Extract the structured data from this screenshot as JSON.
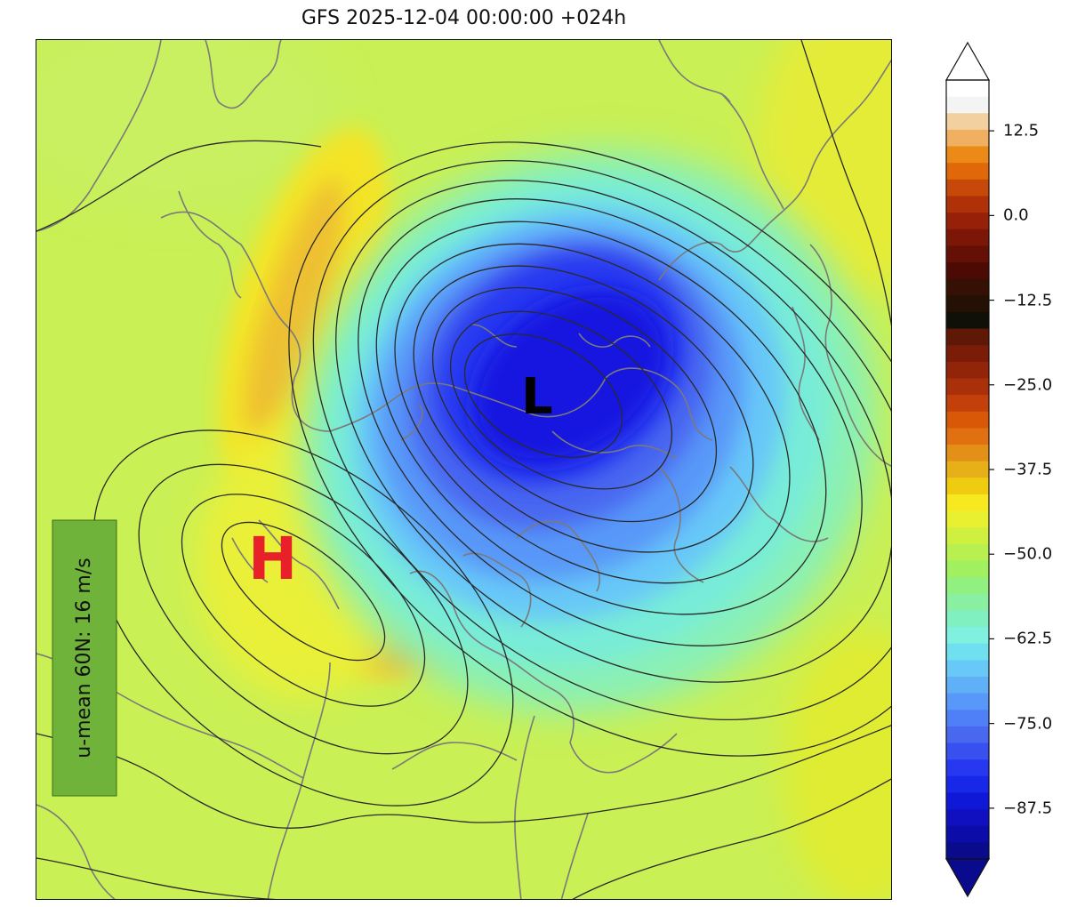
{
  "title": "GFS 2025-12-04 00:00:00 +024h",
  "map": {
    "low_marker": "L",
    "high_marker": "H",
    "colors": {
      "low_marker": "#000000",
      "high_marker": "#e8202a",
      "coastline": "#7a7a7a",
      "contour": "#2a2a2a"
    }
  },
  "info_box": {
    "text": "u-mean 60N: 16 m/s",
    "color": "#6fb33a"
  },
  "colorbar": {
    "ticks": [
      "12.5",
      "0.0",
      "−12.5",
      "−25.0",
      "−37.5",
      "−50.0",
      "−62.5",
      "−75.0",
      "−87.5"
    ],
    "tick_values": [
      12.5,
      0.0,
      -12.5,
      -25.0,
      -37.5,
      -50.0,
      -62.5,
      -75.0,
      -87.5
    ],
    "range": [
      -95,
      20
    ],
    "extend": "both",
    "colors_top_to_bottom": [
      "#ffffff",
      "#f4f4f4",
      "#f2d0a0",
      "#f0b060",
      "#ec8a18",
      "#e06808",
      "#c8480a",
      "#b03008",
      "#962008",
      "#7c1606",
      "#641006",
      "#4c0a04",
      "#361004",
      "#241004",
      "#101008",
      "#601806",
      "#7a1c08",
      "#92240a",
      "#aa300a",
      "#c4400a",
      "#d85808",
      "#e07010",
      "#e49018",
      "#e8b018",
      "#f0cc10",
      "#f8e820",
      "#e8f030",
      "#d0f040",
      "#b8f050",
      "#a0f060",
      "#90f080",
      "#88f0a0",
      "#80f0c0",
      "#80f0e0",
      "#70e0f0",
      "#68c8f8",
      "#60b0f8",
      "#5898f8",
      "#5080f8",
      "#4868f0",
      "#3850f0",
      "#2838f0",
      "#1828e8",
      "#1018d8",
      "#1010c0",
      "#0c0ca8",
      "#0a0a8c"
    ]
  }
}
